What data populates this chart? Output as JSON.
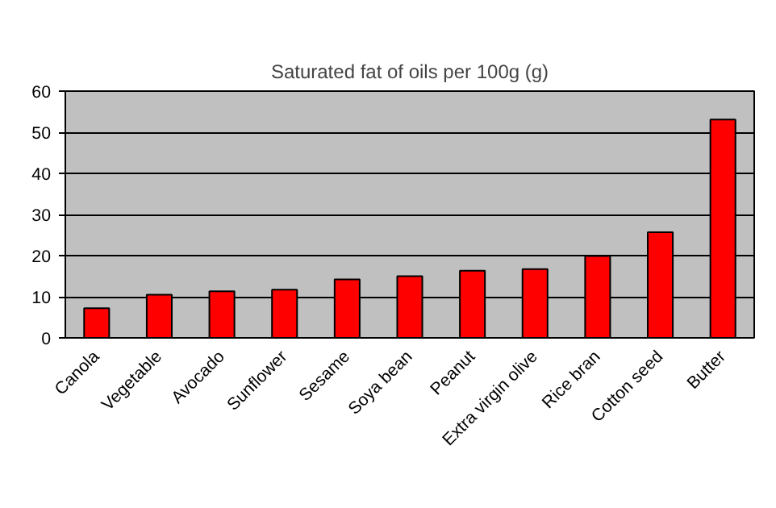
{
  "chart_data": {
    "type": "bar",
    "title": "Saturated fat of oils per 100g (g)",
    "categories": [
      "Canola",
      "Vegetable",
      "Avocado",
      "Sunflower",
      "Sesame",
      "Soya bean",
      "Peanut",
      "Extra virgin olive",
      "Rice bran",
      "Cotton seed",
      "Butter"
    ],
    "values": [
      7.2,
      10.5,
      11.3,
      11.7,
      14.2,
      15.0,
      16.3,
      16.7,
      19.9,
      25.7,
      53.1
    ],
    "color": "#ff0000",
    "ylim": [
      0,
      60
    ],
    "yticks": [
      0,
      10,
      20,
      30,
      40,
      50,
      60
    ],
    "grid": "y"
  }
}
